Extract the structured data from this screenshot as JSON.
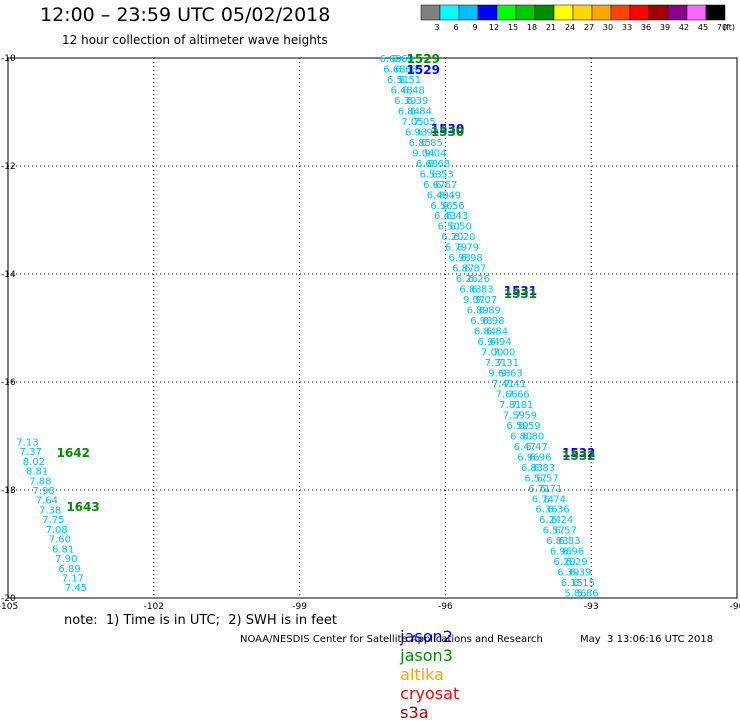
{
  "header": {
    "title": "12:00 – 23:59 UTC 05/02/2018",
    "subtitle": "12 hour collection of altimeter wave heights"
  },
  "color_scale": {
    "labels": [
      "3",
      "6",
      "9",
      "12",
      "15",
      "18",
      "21",
      "24",
      "27",
      "30",
      "33",
      "36",
      "39",
      "42",
      "45",
      "70"
    ],
    "unit": "(ft)",
    "colors": [
      "#808080",
      "#00ffff",
      "#00bfff",
      "#0000ff",
      "#00ff00",
      "#00c800",
      "#008c00",
      "#ffff00",
      "#ffd700",
      "#ffa500",
      "#ff4500",
      "#ff0000",
      "#a00000",
      "#8b008b",
      "#ff66ff",
      "#000000"
    ]
  },
  "chart_data": {
    "type": "scatter",
    "xlim": [
      -105,
      -90
    ],
    "ylim": [
      -20,
      -10
    ],
    "x_ticks": [
      -105,
      -102,
      -99,
      -96,
      -93,
      -90
    ],
    "y_ticks": [
      -10,
      -12,
      -14,
      -16,
      -18,
      -20
    ],
    "grid": true,
    "track_main": {
      "start": {
        "x": -97.0,
        "y": -10.0
      },
      "end": {
        "x": -93.2,
        "y": -19.9
      },
      "values_ft": [
        "6.69",
        "6.68",
        "6.51",
        "6.48",
        "6.39",
        "6.84",
        "7.05",
        "6.93",
        "6.85",
        "9.04",
        "6.68",
        "6.53",
        "6.67",
        "6.49",
        "6.56",
        "6.43",
        "6.50",
        "6.20",
        "6.79",
        "6.98",
        "6.87",
        "6.26",
        "6.83",
        "9.07",
        "6.89",
        "6.98",
        "6.84",
        "6.94",
        "7.00",
        "7.31",
        "9.63",
        "7.41",
        "7.66",
        "7.81",
        "7.59",
        "6.59",
        "6.80",
        "6.47",
        "6.96",
        "6.83",
        "6.57",
        "6.71",
        "6.74",
        "6.36",
        "6.24",
        "6.57",
        "6.83",
        "6.96",
        "6.29",
        "6.39",
        "6.15",
        "5.86"
      ]
    },
    "track_left": {
      "start": {
        "x": -104.6,
        "y": -17.1
      },
      "end": {
        "x": -103.6,
        "y": -19.8
      },
      "values_ft": [
        "7.13",
        "7.37",
        "8.02",
        "8.81",
        "7.88",
        "7.98",
        "7.64",
        "7.38",
        "7.75",
        "7.08",
        "7.60",
        "6.81",
        "7.90",
        "6.89",
        "7.17",
        "7.45"
      ]
    },
    "time_labels": [
      {
        "text": "1529",
        "x": -96.8,
        "y": -10.0,
        "color": "#008c00"
      },
      {
        "text": "1529",
        "x": -96.8,
        "y": -10.2,
        "color": "#0000ff"
      },
      {
        "text": "1530",
        "x": -96.3,
        "y": -11.3,
        "color": "#0000ff"
      },
      {
        "text": "1530",
        "x": -96.3,
        "y": -11.35,
        "color": "#008c00"
      },
      {
        "text": "1531",
        "x": -94.8,
        "y": -14.3,
        "color": "#0000ff"
      },
      {
        "text": "1531",
        "x": -94.8,
        "y": -14.35,
        "color": "#008c00"
      },
      {
        "text": "1532",
        "x": -93.6,
        "y": -17.3,
        "color": "#0000ff"
      },
      {
        "text": "1532",
        "x": -93.6,
        "y": -17.35,
        "color": "#008c00"
      },
      {
        "text": "1642",
        "x": -104.0,
        "y": -17.3,
        "color": "#008c00"
      },
      {
        "text": "1643",
        "x": -103.8,
        "y": -18.3,
        "color": "#008c00"
      }
    ]
  },
  "note": "note:  1) Time is in UTC;  2) SWH is in feet",
  "legend_sats": [
    {
      "name": "jason2",
      "color": "#0000ff"
    },
    {
      "name": "jason3",
      "color": "#008c00"
    },
    {
      "name": "altika",
      "color": "#ffa500"
    },
    {
      "name": "cryosat",
      "color": "#ff0000"
    },
    {
      "name": "s3a",
      "color": "#a00000"
    }
  ],
  "footer": "NOAA/NESDIS Center for Satellite Applications and Research",
  "credit": "May  3 13:06:16 UTC 2018"
}
